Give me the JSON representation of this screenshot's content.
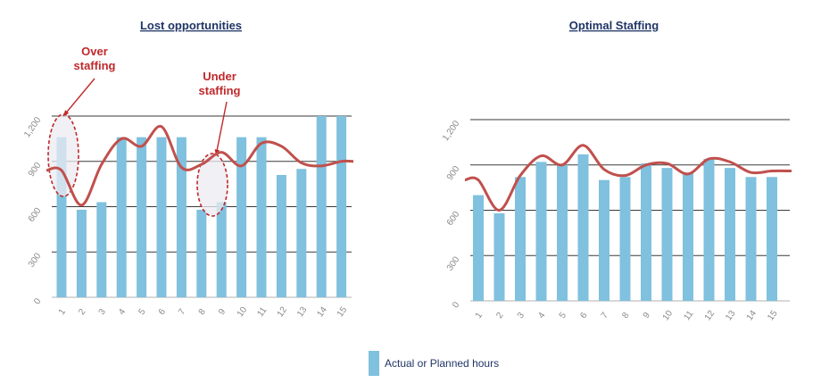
{
  "chart_data": [
    {
      "type": "bar",
      "title": "Lost opportunities",
      "categories": [
        "1",
        "2",
        "3",
        "4",
        "5",
        "6",
        "7",
        "8",
        "9",
        "10",
        "11",
        "12",
        "13",
        "14",
        "15"
      ],
      "values": [
        1060,
        580,
        630,
        1060,
        1060,
        1060,
        1060,
        580,
        630,
        1060,
        1060,
        810,
        850,
        1200,
        1200
      ],
      "line": [
        840,
        610,
        880,
        1050,
        1000,
        1130,
        860,
        880,
        960,
        870,
        1020,
        1000,
        890,
        870,
        900
      ],
      "yticks": [
        "0",
        "300",
        "600",
        "900",
        "1,200"
      ],
      "ylim": [
        0,
        1200
      ],
      "grid": true,
      "annotations": [
        {
          "text_lines": [
            "Over",
            "staffing"
          ],
          "category": "1"
        },
        {
          "text_lines": [
            "Under",
            "staffing"
          ],
          "category": "8.5"
        }
      ]
    },
    {
      "type": "bar",
      "title": "Optimal Staffing",
      "categories": [
        "1",
        "2",
        "3",
        "4",
        "5",
        "6",
        "7",
        "8",
        "9",
        "10",
        "11",
        "12",
        "13",
        "14",
        "15"
      ],
      "values": [
        700,
        580,
        820,
        920,
        900,
        970,
        800,
        820,
        910,
        880,
        850,
        940,
        880,
        820,
        820
      ],
      "line": [
        800,
        600,
        830,
        960,
        900,
        1030,
        870,
        830,
        900,
        910,
        840,
        940,
        920,
        850,
        860
      ],
      "yticks": [
        "0",
        "300",
        "600",
        "900",
        "1,200"
      ],
      "ylim": [
        0,
        1200
      ],
      "grid": true
    }
  ],
  "legend": {
    "label": "Actual or Planned hours",
    "color": "#7fc1de"
  },
  "colors": {
    "bar": "#7fc1de",
    "line": "#c0504d",
    "title": "#1f3566",
    "annotation": "#c0282b"
  }
}
